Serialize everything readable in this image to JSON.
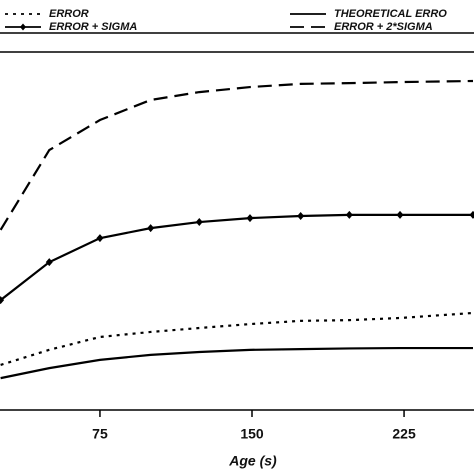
{
  "chart_data": {
    "type": "line",
    "x": [
      26,
      50,
      75,
      100,
      124,
      149,
      174,
      198,
      223,
      259
    ],
    "xlim": [
      25.7,
      259.5
    ],
    "xticks": [
      75,
      150,
      225
    ],
    "ylim": [
      0,
      100
    ],
    "xlabel": "Age (s)",
    "series": [
      {
        "name": "ERROR",
        "color": "#000000",
        "style": "dotted",
        "values": [
          12.6,
          16.8,
          20.4,
          21.8,
          22.9,
          24,
          24.9,
          25.1,
          25.7,
          27.1
        ]
      },
      {
        "name": "ERROR + SIGMA",
        "color": "#000000",
        "style": "diamond",
        "values": [
          30.7,
          41.3,
          48,
          50.8,
          52.5,
          53.6,
          54.2,
          54.5,
          54.5,
          54.5
        ]
      },
      {
        "name": "THEORETICAL ERRO",
        "color": "#000000",
        "style": "solid",
        "values": [
          8.9,
          11.7,
          14,
          15.4,
          16.2,
          16.8,
          17,
          17.2,
          17.3,
          17.3
        ]
      },
      {
        "name": "ERROR + 2*SIGMA",
        "color": "#000000",
        "style": "dashed",
        "values": [
          50.3,
          72.6,
          81,
          86.6,
          88.8,
          90.2,
          91.1,
          91.3,
          91.6,
          91.9
        ]
      }
    ]
  }
}
